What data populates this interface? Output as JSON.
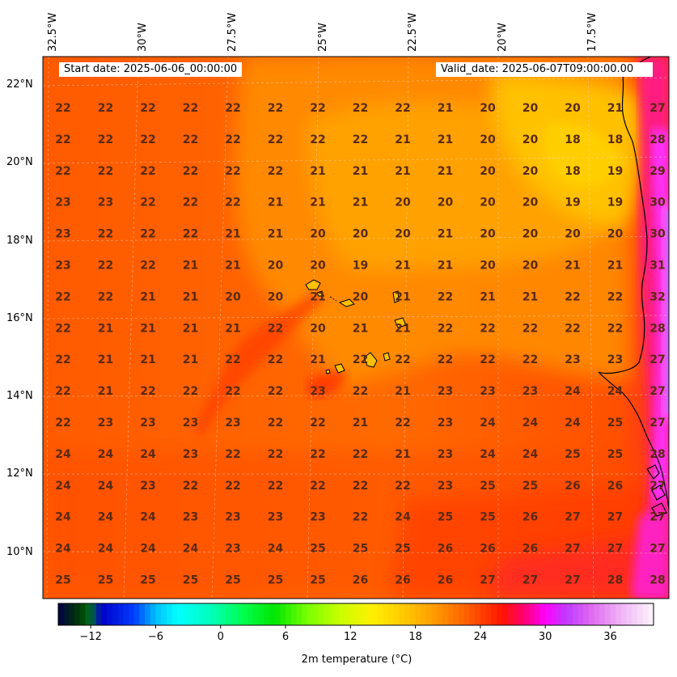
{
  "header": {
    "start_date": "Start date: 2025-06-06_00:00:00",
    "valid_date": "Valid_date: 2025-06-07T09:00:00.00"
  },
  "lon_labels": [
    "32.5°W",
    "30°W",
    "27.5°W",
    "25°W",
    "22.5°W",
    "20°W",
    "17.5°W"
  ],
  "lat_labels": [
    "22°N",
    "20°N",
    "18°N",
    "16°N",
    "14°N",
    "12°N",
    "10°N"
  ],
  "map_extent": {
    "lon_west": -33.0,
    "lon_east": -15.5,
    "lat_south": 9.0,
    "lat_north": 22.7
  },
  "grid": {
    "rows": [
      [
        "22",
        "22",
        "22",
        "22",
        "22",
        "22",
        "22",
        "22",
        "22",
        "21",
        "20",
        "20",
        "20",
        "21",
        "27"
      ],
      [
        "22",
        "22",
        "22",
        "22",
        "22",
        "22",
        "22",
        "22",
        "21",
        "21",
        "20",
        "20",
        "18",
        "18",
        "28"
      ],
      [
        "22",
        "22",
        "22",
        "22",
        "22",
        "22",
        "21",
        "21",
        "21",
        "21",
        "20",
        "20",
        "18",
        "19",
        "29"
      ],
      [
        "23",
        "23",
        "22",
        "22",
        "22",
        "21",
        "21",
        "21",
        "20",
        "20",
        "20",
        "20",
        "19",
        "19",
        "30"
      ],
      [
        "23",
        "22",
        "22",
        "22",
        "21",
        "21",
        "20",
        "20",
        "20",
        "21",
        "20",
        "20",
        "20",
        "20",
        "30"
      ],
      [
        "23",
        "22",
        "22",
        "21",
        "21",
        "20",
        "20",
        "19",
        "21",
        "21",
        "20",
        "20",
        "21",
        "21",
        "31"
      ],
      [
        "22",
        "22",
        "21",
        "21",
        "20",
        "20",
        "21",
        "20",
        "21",
        "22",
        "21",
        "21",
        "22",
        "22",
        "32"
      ],
      [
        "22",
        "21",
        "21",
        "21",
        "21",
        "22",
        "20",
        "21",
        "21",
        "22",
        "22",
        "22",
        "22",
        "22",
        "28"
      ],
      [
        "22",
        "21",
        "21",
        "21",
        "22",
        "22",
        "21",
        "22",
        "22",
        "22",
        "22",
        "22",
        "23",
        "23",
        "27"
      ],
      [
        "22",
        "21",
        "22",
        "22",
        "22",
        "22",
        "23",
        "22",
        "21",
        "23",
        "23",
        "23",
        "24",
        "24",
        "27"
      ],
      [
        "22",
        "23",
        "23",
        "23",
        "23",
        "22",
        "22",
        "21",
        "22",
        "23",
        "24",
        "24",
        "24",
        "25",
        "27"
      ],
      [
        "24",
        "24",
        "24",
        "23",
        "22",
        "22",
        "22",
        "22",
        "21",
        "23",
        "24",
        "24",
        "25",
        "25",
        "28"
      ],
      [
        "24",
        "24",
        "23",
        "22",
        "22",
        "22",
        "22",
        "22",
        "22",
        "23",
        "25",
        "25",
        "26",
        "26",
        "27"
      ],
      [
        "24",
        "24",
        "24",
        "23",
        "23",
        "23",
        "23",
        "22",
        "24",
        "25",
        "25",
        "26",
        "27",
        "27",
        "27"
      ],
      [
        "24",
        "24",
        "24",
        "24",
        "23",
        "24",
        "25",
        "25",
        "25",
        "26",
        "26",
        "26",
        "27",
        "27",
        "27"
      ],
      [
        "25",
        "25",
        "25",
        "25",
        "25",
        "25",
        "25",
        "26",
        "26",
        "26",
        "27",
        "27",
        "27",
        "28",
        "28"
      ]
    ]
  },
  "colorbar": {
    "min": -15,
    "max": 40,
    "tick_values": [
      -12,
      -6,
      0,
      6,
      12,
      18,
      24,
      30,
      36
    ],
    "tick_labels": [
      "−12",
      "−6",
      "0",
      "6",
      "12",
      "18",
      "24",
      "30",
      "36"
    ],
    "label": "2m temperature ($^\\circ$C)",
    "label_display": "2m temperature (°C)"
  },
  "colors": {
    "grid_text": "#5a2a10",
    "coastline": "#000000",
    "temp_18": "#ffc000",
    "temp_20": "#ffa000",
    "temp_22": "#ff6a00",
    "temp_25": "#ff3800",
    "temp_28": "#ff00a0",
    "temp_31": "#ff00ff"
  }
}
